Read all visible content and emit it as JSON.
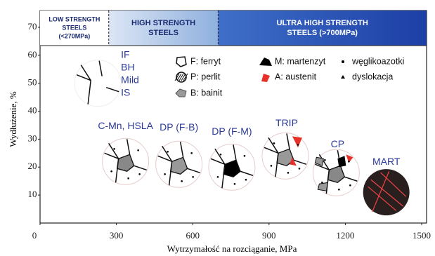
{
  "chart_data": {
    "type": "scatter",
    "x_label": "Wytrzymałość na rozciąganie, MPa",
    "y_label": "Wydłużenie, %",
    "xlim": [
      0,
      1500
    ],
    "xticks": [
      0,
      300,
      600,
      900,
      1200,
      1500
    ],
    "ylim": [
      0,
      76
    ],
    "yticks": [
      10,
      20,
      30,
      40,
      50,
      60,
      70
    ],
    "bands": [
      {
        "label": [
          "LOW STRENGTH",
          "STEELS",
          "(<270MPa)"
        ],
        "from": 0,
        "to": 270
      },
      {
        "label": [
          "HIGH STRENGTH",
          "STEELS"
        ],
        "from": 270,
        "to": 700
      },
      {
        "label": [
          "ULTRA HIGH STRENGTH",
          "STEELS (>700MPa)"
        ],
        "from": 700,
        "to": 1500
      }
    ],
    "points": [
      {
        "label": [
          "IF",
          "BH",
          "Mild",
          "IS"
        ],
        "x": 227,
        "y": 50
      },
      {
        "label": [
          "C-Mn, HSLA"
        ],
        "x": 336,
        "y": 22
      },
      {
        "label": [
          "DP (F-B)"
        ],
        "x": 546,
        "y": 21
      },
      {
        "label": [
          "DP (F-M)"
        ],
        "x": 754,
        "y": 20
      },
      {
        "label": [
          "TRIP"
        ],
        "x": 964,
        "y": 24
      },
      {
        "label": [
          "CP"
        ],
        "x": 1164,
        "y": 18
      },
      {
        "label": [
          "MART"
        ],
        "x": 1361,
        "y": 11
      }
    ],
    "legend": [
      "F: ferryt",
      "P: perlit",
      "B: bainit",
      "M: martenzyt",
      "A: austenit",
      "węglikoazotki",
      "dyslokacja"
    ]
  }
}
